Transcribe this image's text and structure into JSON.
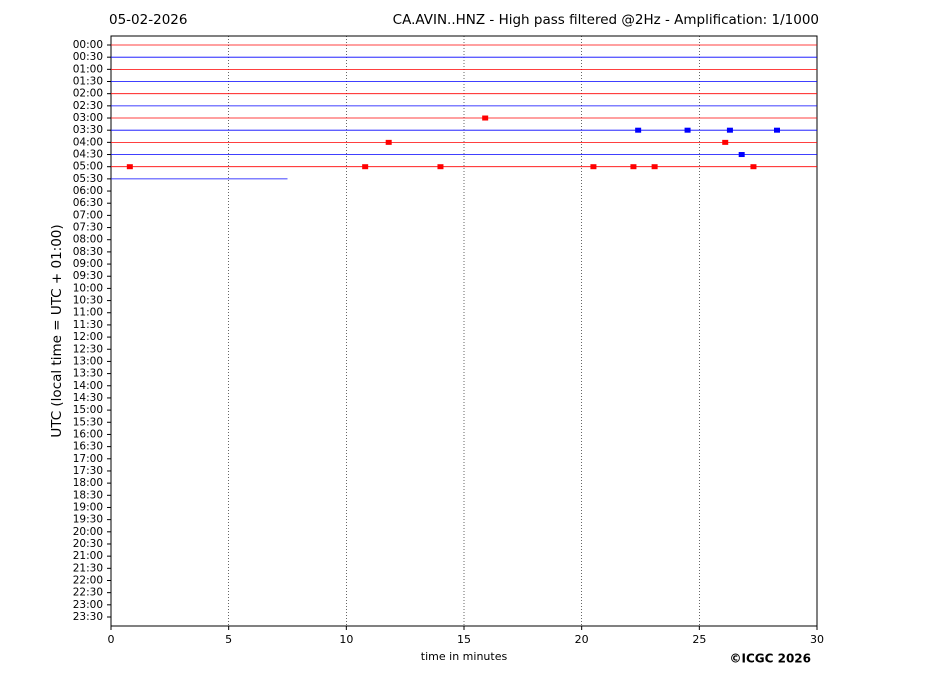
{
  "chart_data": {
    "type": "helicorder",
    "date": "05-02-2026",
    "title": "CA.AVIN..HNZ - High pass filtered @2Hz - Amplification: 1/1000",
    "xlabel": "time in minutes",
    "ylabel": "UTC (local time = UTC + 01:00)",
    "credit": "©ICGC 2026",
    "xlim": [
      0,
      30
    ],
    "xticks": [
      0,
      5,
      10,
      15,
      20,
      25,
      30
    ],
    "grid": true,
    "categories": [
      "00:00",
      "00:30",
      "01:00",
      "01:30",
      "02:00",
      "02:30",
      "03:00",
      "03:30",
      "04:00",
      "04:30",
      "05:00",
      "05:30",
      "06:00",
      "06:30",
      "07:00",
      "07:30",
      "08:00",
      "08:30",
      "09:00",
      "09:30",
      "10:00",
      "10:30",
      "11:00",
      "11:30",
      "12:00",
      "12:30",
      "13:00",
      "13:30",
      "14:00",
      "14:30",
      "15:00",
      "15:30",
      "16:00",
      "16:30",
      "17:00",
      "17:30",
      "18:00",
      "18:30",
      "19:00",
      "19:30",
      "20:00",
      "20:30",
      "21:00",
      "21:30",
      "22:00",
      "22:30",
      "23:00",
      "23:30"
    ],
    "traces": [
      {
        "color": "#ff0000",
        "end": 30,
        "bursts": []
      },
      {
        "color": "#0000ff",
        "end": 30,
        "bursts": []
      },
      {
        "color": "#ff0000",
        "end": 30,
        "bursts": []
      },
      {
        "color": "#0000ff",
        "end": 30,
        "bursts": []
      },
      {
        "color": "#ff0000",
        "end": 30,
        "bursts": []
      },
      {
        "color": "#0000ff",
        "end": 30,
        "bursts": []
      },
      {
        "color": "#ff0000",
        "end": 30,
        "bursts": [
          15.9
        ]
      },
      {
        "color": "#0000ff",
        "end": 30,
        "bursts": [
          22.4,
          24.5,
          26.3,
          28.3
        ]
      },
      {
        "color": "#ff0000",
        "end": 30,
        "bursts": [
          11.8,
          26.1
        ]
      },
      {
        "color": "#0000ff",
        "end": 30,
        "bursts": [
          26.8
        ]
      },
      {
        "color": "#ff0000",
        "end": 30,
        "bursts": [
          0.8,
          10.8,
          14,
          20.5,
          22.2,
          23.1,
          27.3
        ]
      },
      {
        "color": "#0000ff",
        "end": 7.5,
        "bursts": []
      }
    ]
  }
}
